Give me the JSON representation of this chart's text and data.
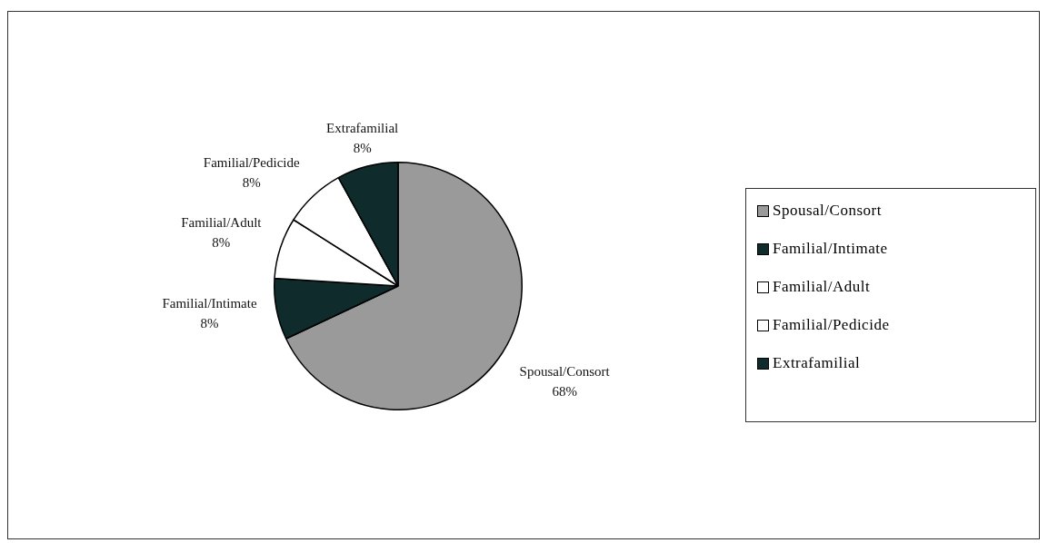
{
  "chart_data": {
    "type": "pie",
    "categories": [
      "Spousal/Consort",
      "Familial/Intimate",
      "Familial/Adult",
      "Familial/Pedicide",
      "Extrafamilial"
    ],
    "values": [
      68,
      8,
      8,
      8,
      8
    ],
    "value_labels": [
      "68%",
      "8%",
      "8%",
      "8%",
      "8%"
    ],
    "colors": [
      "#9a9a9a",
      "#0f2b2b",
      "#ffffff",
      "#ffffff",
      "#0f2b2b"
    ],
    "legend": "right"
  }
}
